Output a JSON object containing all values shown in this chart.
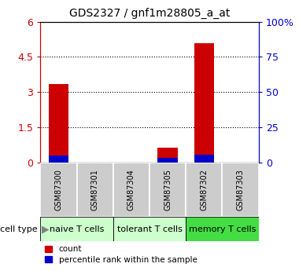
{
  "title": "GDS2327 / gnf1m28805_a_at",
  "samples": [
    "GSM87300",
    "GSM87301",
    "GSM87304",
    "GSM87305",
    "GSM87302",
    "GSM87303"
  ],
  "count_values": [
    3.35,
    0.0,
    0.0,
    0.65,
    5.1,
    0.0
  ],
  "percentile_values": [
    5.0,
    0.0,
    0.0,
    3.5,
    5.5,
    0.0
  ],
  "groups": [
    {
      "label": "naive T cells",
      "start": 0,
      "end": 2,
      "color": "#ccffcc"
    },
    {
      "label": "tolerant T cells",
      "start": 2,
      "end": 4,
      "color": "#ccffcc"
    },
    {
      "label": "memory T cells",
      "start": 4,
      "end": 6,
      "color": "#44dd44"
    }
  ],
  "left_yticks": [
    0,
    1.5,
    3.0,
    4.5,
    6.0
  ],
  "left_ytick_labels": [
    "0",
    "1.5",
    "3",
    "4.5",
    "6"
  ],
  "right_yticks": [
    0,
    25,
    50,
    75,
    100
  ],
  "right_ytick_labels": [
    "0",
    "25",
    "50",
    "75",
    "100%"
  ],
  "ylim_left": [
    0,
    6
  ],
  "ylim_right": [
    0,
    100
  ],
  "bar_color_count": "#cc0000",
  "bar_color_pct": "#0000cc",
  "bar_width": 0.55,
  "cell_type_label": "cell type",
  "legend_count_label": "count",
  "legend_pct_label": "percentile rank within the sample",
  "title_fontsize": 10,
  "axis_color_left": "#cc0000",
  "axis_color_right": "#0000cc",
  "sample_box_color": "#cccccc",
  "sample_label_fontsize": 7,
  "group_label_fontsize": 8
}
